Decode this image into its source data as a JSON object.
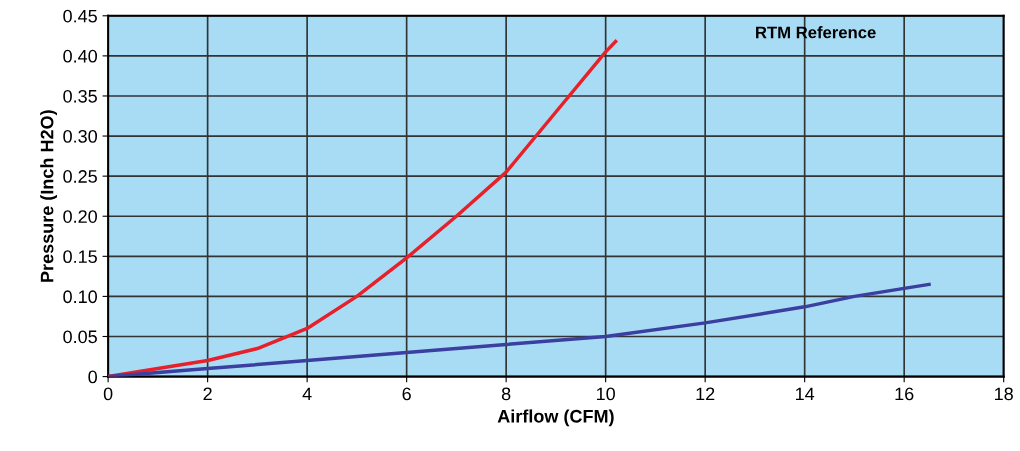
{
  "chart_data": {
    "type": "line",
    "xlabel": "Airflow (CFM)",
    "ylabel": "Pressure (Inch H2O)",
    "xlim": [
      0,
      18
    ],
    "xticks": [
      0,
      2,
      4,
      6,
      8,
      10,
      12,
      14,
      16,
      18
    ],
    "ylim": [
      0,
      0.45
    ],
    "yticks": [
      "0",
      {
        "value": 0.05,
        "label": "0.05"
      },
      {
        "value": 0.1,
        "label": "0.10"
      },
      {
        "value": 0.15,
        "label": "0.15"
      },
      {
        "value": 0.2,
        "label": "0.20"
      },
      {
        "value": 0.25,
        "label": "0.25"
      },
      {
        "value": 0.3,
        "label": "0.30"
      },
      {
        "value": 0.35,
        "label": "0.35"
      },
      {
        "value": 0.4,
        "label": "0.40"
      },
      {
        "value": 0.45,
        "label": "0.45"
      }
    ],
    "grid": true,
    "marker": "none",
    "line_style": "solid",
    "annotations": [
      "RTM Reference"
    ],
    "series": [
      {
        "color": "#e8202a",
        "x": [
          0,
          1,
          2,
          3,
          4,
          5,
          6,
          7,
          8,
          9,
          10,
          10.2
        ],
        "values": [
          0,
          0.01,
          0.02,
          0.035,
          0.06,
          0.1,
          0.148,
          0.2,
          0.255,
          0.33,
          0.405,
          0.418
        ]
      },
      {
        "color": "#3a3fa0",
        "x": [
          0,
          2,
          4,
          6,
          8,
          10,
          12,
          14,
          15,
          16,
          16.5
        ],
        "values": [
          0,
          0.01,
          0.02,
          0.03,
          0.04,
          0.05,
          0.067,
          0.087,
          0.1,
          0.11,
          0.115
        ]
      }
    ]
  }
}
